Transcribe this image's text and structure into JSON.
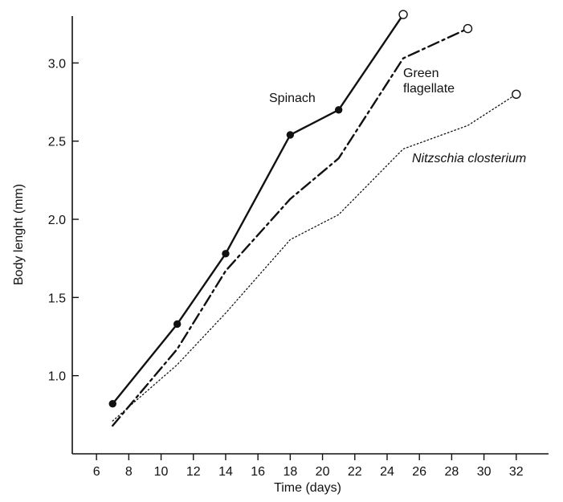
{
  "chart_data": {
    "type": "line",
    "xlabel": "Time (days)",
    "ylabel": "Body lenght (mm)",
    "xlim": [
      4.5,
      34
    ],
    "ylim": [
      0.5,
      3.3
    ],
    "x_ticks": [
      6,
      8,
      10,
      12,
      14,
      16,
      18,
      20,
      22,
      24,
      26,
      28,
      30,
      32
    ],
    "y_ticks": [
      1.0,
      1.5,
      2.0,
      2.5,
      3.0
    ],
    "y_tick_labels": [
      "1.0",
      "1.5",
      "2.0",
      "2.5",
      "3.0"
    ],
    "grid": false,
    "series": [
      {
        "name": "Spinach",
        "style": "solid",
        "points": [
          {
            "x": 7,
            "y": 0.82
          },
          {
            "x": 11,
            "y": 1.33
          },
          {
            "x": 14,
            "y": 1.78
          },
          {
            "x": 18,
            "y": 2.54
          },
          {
            "x": 21,
            "y": 2.7
          },
          {
            "x": 25,
            "y": 3.31
          }
        ],
        "markers": [
          {
            "x": 7,
            "y": 0.82,
            "type": "filled"
          },
          {
            "x": 11,
            "y": 1.33,
            "type": "filled"
          },
          {
            "x": 14,
            "y": 1.78,
            "type": "filled"
          },
          {
            "x": 18,
            "y": 2.54,
            "type": "filled"
          },
          {
            "x": 21,
            "y": 2.7,
            "type": "filled"
          },
          {
            "x": 25,
            "y": 3.31,
            "type": "open"
          }
        ]
      },
      {
        "name": "Green flagellate",
        "name_lines": [
          "Green",
          "flagellate"
        ],
        "style": "dashdot",
        "points": [
          {
            "x": 7,
            "y": 0.68
          },
          {
            "x": 11,
            "y": 1.17
          },
          {
            "x": 14,
            "y": 1.67
          },
          {
            "x": 18,
            "y": 2.13
          },
          {
            "x": 21,
            "y": 2.39
          },
          {
            "x": 25,
            "y": 3.03
          },
          {
            "x": 29,
            "y": 3.22
          }
        ],
        "markers": [
          {
            "x": 29,
            "y": 3.22,
            "type": "open"
          }
        ]
      },
      {
        "name": "Nitzschia closterium",
        "style": "dotted",
        "points": [
          {
            "x": 7,
            "y": 0.71
          },
          {
            "x": 11,
            "y": 1.07
          },
          {
            "x": 14,
            "y": 1.4
          },
          {
            "x": 18,
            "y": 1.87
          },
          {
            "x": 21,
            "y": 2.03
          },
          {
            "x": 25,
            "y": 2.45
          },
          {
            "x": 29,
            "y": 2.6
          },
          {
            "x": 32,
            "y": 2.8
          }
        ],
        "markers": [
          {
            "x": 32,
            "y": 2.8,
            "type": "open"
          }
        ]
      }
    ]
  }
}
